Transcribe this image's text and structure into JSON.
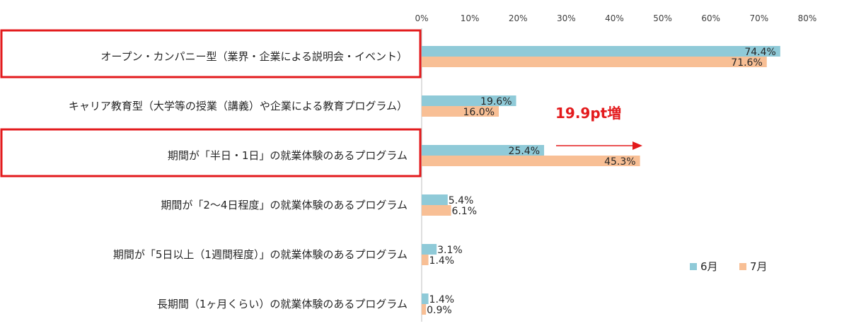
{
  "chart_data": {
    "type": "bar",
    "orientation": "horizontal",
    "categories": [
      "オープン・カンパニー型（業界・企業による説明会・イベント）",
      "キャリア教育型（大学等の授業（講義）や企業による教育プログラム）",
      "期間が「半日・1日」の就業体験のあるプログラム",
      "期間が「2～4日程度」の就業体験のあるプログラム",
      "期間が「5日以上（1週間程度）」の就業体験のあるプログラム",
      "長期間（1ヶ月くらい）の就業体験のあるプログラム"
    ],
    "series": [
      {
        "name": "6月",
        "values": [
          74.4,
          19.6,
          25.4,
          5.4,
          3.1,
          1.4
        ],
        "labels": [
          "74.4%",
          "19.6%",
          "25.4%",
          "5.4%",
          "3.1%",
          "1.4%"
        ],
        "color": "#8FCAD8"
      },
      {
        "name": "7月",
        "values": [
          71.6,
          16.0,
          45.3,
          6.1,
          1.4,
          0.9
        ],
        "labels": [
          "71.6%",
          "16.0%",
          "45.3%",
          "6.1%",
          "1.4%",
          "0.9%"
        ],
        "color": "#F8BF95"
      }
    ],
    "xlim": [
      0,
      80
    ],
    "xticks": [
      "0%",
      "10%",
      "20%",
      "30%",
      "40%",
      "50%",
      "60%",
      "70%",
      "80%"
    ],
    "legend_position": "bottom-right",
    "highlighted_categories": [
      0,
      2
    ],
    "highlight_color": "#E31A1C",
    "annotation": {
      "text": "19.9pt増",
      "color": "#E31A1C",
      "category": 2
    }
  }
}
